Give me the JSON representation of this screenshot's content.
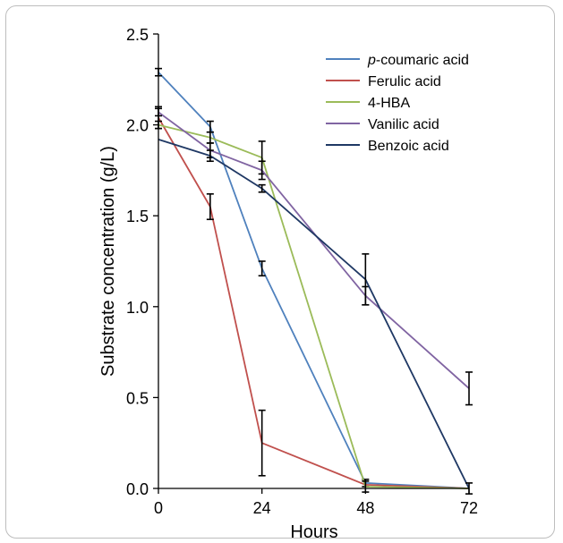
{
  "chart_data": {
    "type": "line",
    "title": "",
    "xlabel": "Hours",
    "ylabel": "Substrate concentration  (g/L)",
    "x_ticks": [
      0,
      24,
      48,
      72
    ],
    "x_tick_labels": [
      "0",
      "24",
      "48",
      "72"
    ],
    "y_ticks": [
      0,
      0.5,
      1.0,
      1.5,
      2.0,
      2.5
    ],
    "y_tick_labels": [
      "0.0",
      "0.5",
      "1.0",
      "1.5",
      "2.0",
      "2.5"
    ],
    "xlim": [
      0,
      72
    ],
    "ylim": [
      0,
      2.5
    ],
    "grid": false,
    "legend_position": "top-right",
    "series": [
      {
        "name": "p-coumaric acid",
        "name_italic": "p",
        "name_rest": "-coumaric acid",
        "color": "#4f81bd",
        "x": [
          0,
          12,
          24,
          48,
          72
        ],
        "y": [
          2.29,
          1.99,
          1.21,
          0.03,
          0.0
        ],
        "err": [
          0.02,
          0.03,
          0.04,
          0.02,
          0.0
        ]
      },
      {
        "name": "Ferulic acid",
        "color": "#c0504d",
        "x": [
          0,
          12,
          24,
          48,
          72
        ],
        "y": [
          2.04,
          1.55,
          0.25,
          0.02,
          0.0
        ],
        "err": [
          0.06,
          0.07,
          0.18,
          0.0,
          0.0
        ]
      },
      {
        "name": "4-HBA",
        "color": "#9bbb59",
        "x": [
          0,
          12,
          24,
          48,
          72
        ],
        "y": [
          2.0,
          1.93,
          1.82,
          0.01,
          0.0
        ],
        "err": [
          0.02,
          0.03,
          0.09,
          0.03,
          0.0
        ]
      },
      {
        "name": "Vanilic acid",
        "color": "#8064a2",
        "x": [
          0,
          12,
          24,
          48,
          72
        ],
        "y": [
          2.07,
          1.86,
          1.75,
          1.06,
          0.55
        ],
        "err": [
          0.02,
          0.04,
          0.05,
          0.05,
          0.09
        ]
      },
      {
        "name": "Benzoic acid",
        "color": "#1f3864",
        "x": [
          0,
          12,
          24,
          48,
          72
        ],
        "y": [
          1.92,
          1.83,
          1.65,
          1.15,
          0.0
        ],
        "err": [
          0.0,
          0.03,
          0.02,
          0.14,
          0.03
        ]
      }
    ]
  }
}
